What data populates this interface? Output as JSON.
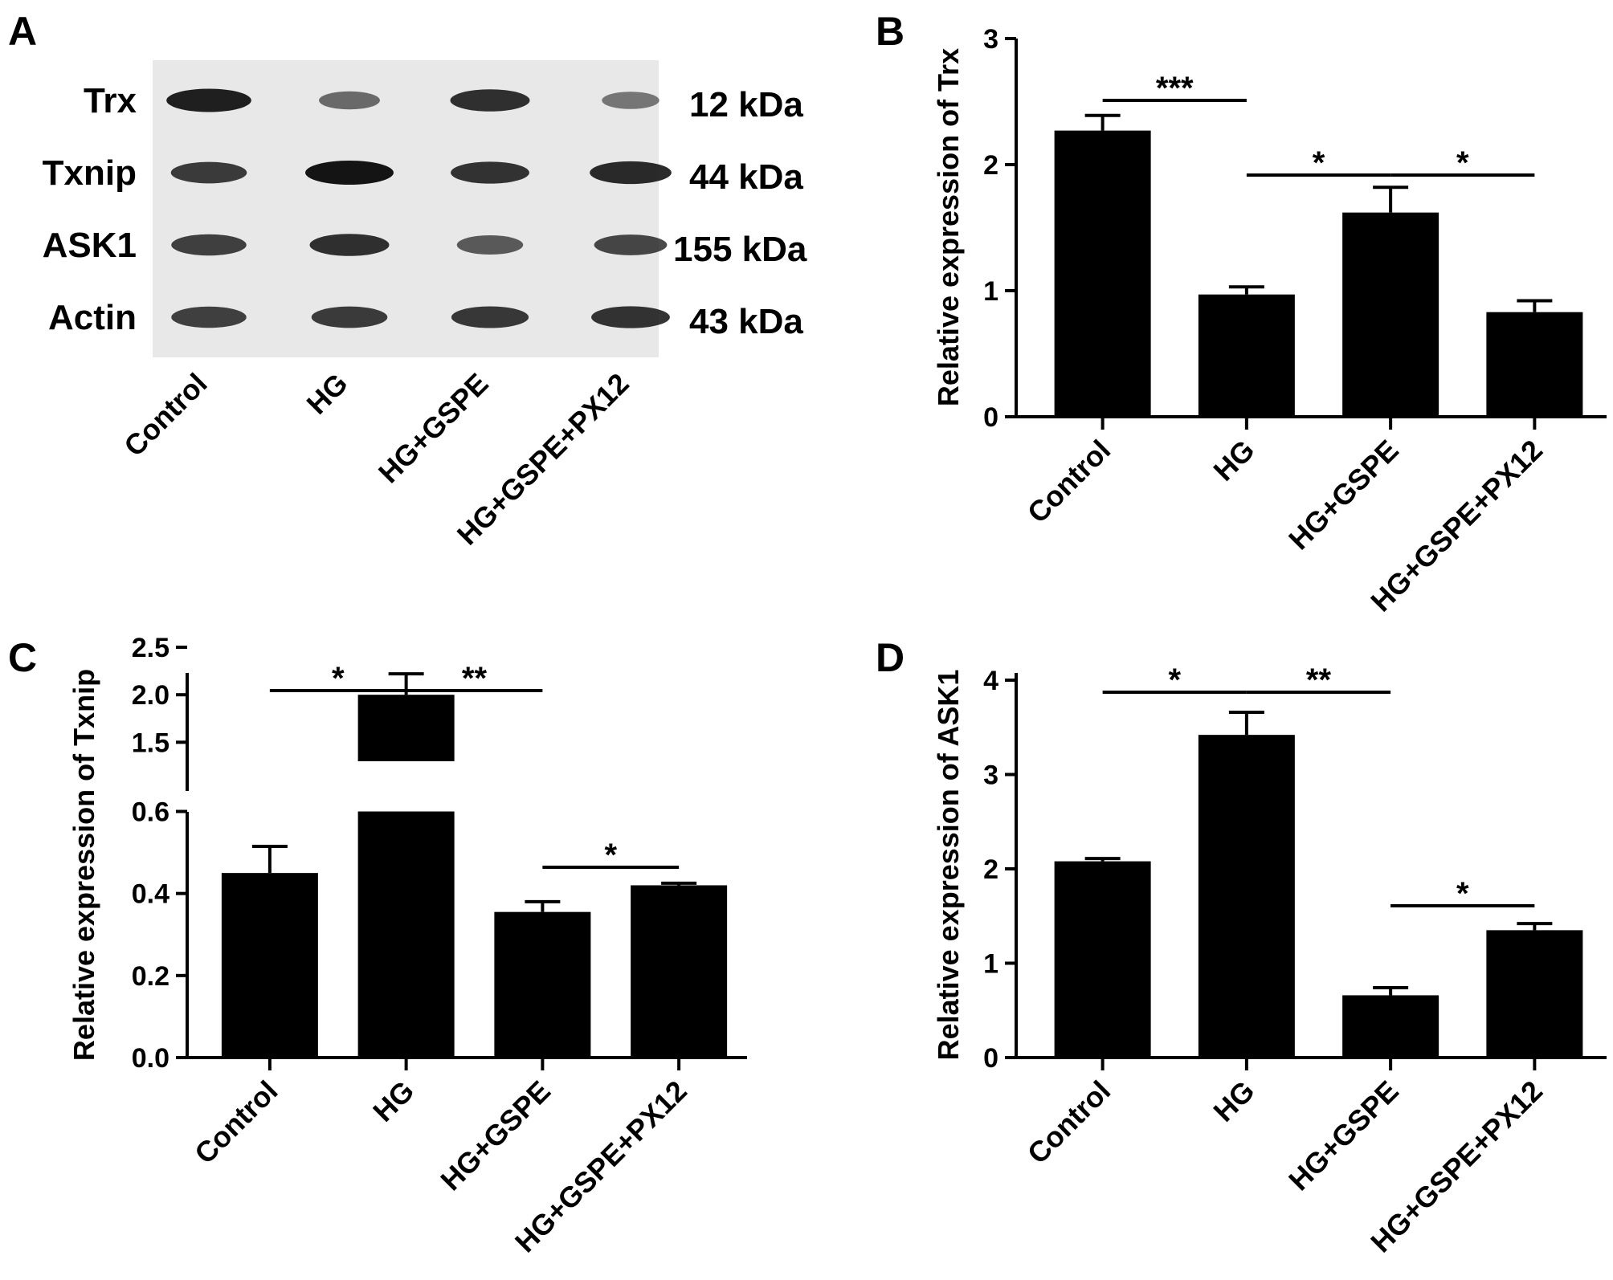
{
  "figure": {
    "panel_labels": [
      "A",
      "B",
      "C",
      "D"
    ],
    "groups": [
      "Control",
      "HG",
      "HG+GSPE",
      "HG+GSPE+PX12"
    ]
  },
  "colors": {
    "bar": "#000000",
    "axis": "#000000",
    "background": "#ffffff",
    "blot_bg": "#e8e8e8",
    "band": "#141414"
  },
  "blot": {
    "rows": [
      {
        "protein": "Trx",
        "size": "12 kDa",
        "intensities": [
          0.92,
          0.38,
          0.8,
          0.3
        ]
      },
      {
        "protein": "Txnip",
        "size": "44 kDa",
        "intensities": [
          0.72,
          1.0,
          0.78,
          0.85
        ]
      },
      {
        "protein": "ASK1",
        "size": "155 kDa",
        "intensities": [
          0.7,
          0.8,
          0.5,
          0.65
        ]
      },
      {
        "protein": "Actin",
        "size": "43 kDa",
        "intensities": [
          0.7,
          0.72,
          0.75,
          0.78
        ]
      }
    ]
  },
  "chart_data": [
    {
      "panel": "B",
      "type": "bar",
      "categories": [
        "Control",
        "HG",
        "HG+GSPE",
        "HG+GSPE+PX12"
      ],
      "values": [
        2.27,
        0.97,
        1.62,
        0.83
      ],
      "errors": [
        0.12,
        0.06,
        0.2,
        0.09
      ],
      "ylabel": "Relative expression of Trx",
      "ylim": [
        0,
        3
      ],
      "yticks": [
        "0",
        "1",
        "2",
        "3"
      ],
      "significance": [
        {
          "from": 0,
          "to": 1,
          "label": "***"
        },
        {
          "from": 1,
          "to": 2,
          "label": "*"
        },
        {
          "from": 2,
          "to": 3,
          "label": "*"
        }
      ]
    },
    {
      "panel": "C",
      "type": "bar",
      "categories": [
        "Control",
        "HG",
        "HG+GSPE",
        "HG+GSPE+PX12"
      ],
      "values": [
        0.45,
        2.0,
        0.355,
        0.42
      ],
      "errors": [
        0.065,
        0.22,
        0.025,
        0.005
      ],
      "ylabel": "Relative expression of Txnip",
      "ylim": [
        0,
        2.5
      ],
      "broken_axis": {
        "lower": [
          0,
          0.6
        ],
        "upper": [
          1.3,
          2.5
        ]
      },
      "yticks_lower": [
        "0.0",
        "0.2",
        "0.4",
        "0.6"
      ],
      "yticks_upper": [
        "1.5",
        "2.0",
        "2.5"
      ],
      "significance": [
        {
          "from": 0,
          "to": 1,
          "label": "*"
        },
        {
          "from": 1,
          "to": 2,
          "label": "**"
        },
        {
          "from": 2,
          "to": 3,
          "label": "*"
        }
      ]
    },
    {
      "panel": "D",
      "type": "bar",
      "categories": [
        "Control",
        "HG",
        "HG+GSPE",
        "HG+GSPE+PX12"
      ],
      "values": [
        2.08,
        3.42,
        0.66,
        1.35
      ],
      "errors": [
        0.03,
        0.24,
        0.08,
        0.07
      ],
      "ylabel": "Relative expression of ASK1",
      "ylim": [
        0,
        4
      ],
      "yticks": [
        "0",
        "1",
        "2",
        "3",
        "4"
      ],
      "significance": [
        {
          "from": 0,
          "to": 1,
          "label": "*"
        },
        {
          "from": 1,
          "to": 2,
          "label": "**"
        },
        {
          "from": 2,
          "to": 3,
          "label": "*"
        }
      ]
    }
  ]
}
